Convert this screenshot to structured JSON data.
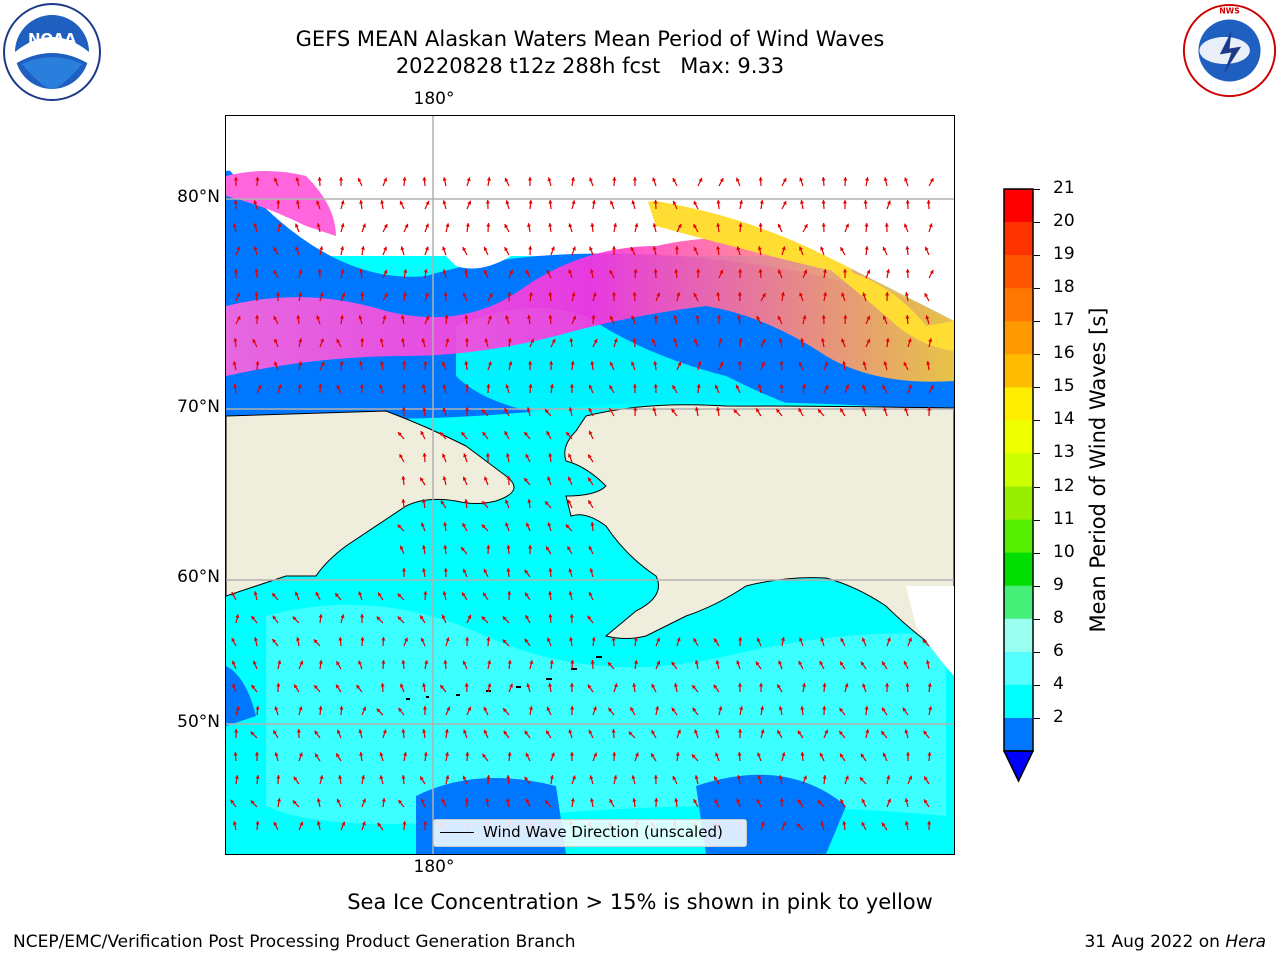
{
  "header": {
    "title_line1": "GEFS MEAN Alaskan Waters Mean Period of Wind Waves",
    "title_line2": "20220828 t12z 288h fcst   Max: 9.33"
  },
  "map": {
    "lat_labels": [
      "80°N",
      "70°N",
      "60°N",
      "50°N"
    ],
    "lon_label_top": "180°",
    "lon_label_bottom": "180°",
    "legend_text": "Wind Wave Direction (unscaled)",
    "arrow_color": "#e00000",
    "land_color": "#efeddc"
  },
  "colorbar": {
    "label": "Mean Period of Wind Waves [s]",
    "ticks": [
      "21",
      "20",
      "19",
      "18",
      "17",
      "16",
      "15",
      "14",
      "13",
      "12",
      "11",
      "10",
      "9",
      "8",
      "6",
      "4",
      "2"
    ],
    "colors": [
      "#ff0000",
      "#ff3300",
      "#ff5500",
      "#ff7700",
      "#ff9900",
      "#ffbb00",
      "#ffee00",
      "#eeff00",
      "#ccff00",
      "#99ee00",
      "#55ee00",
      "#00dd00",
      "#44ee77",
      "#99ffee",
      "#55ffff",
      "#00ffff",
      "#0077ff"
    ],
    "under_color": "#0000ff"
  },
  "notes": {
    "ice_note": "Sea Ice Concentration > 15% is shown in pink to yellow"
  },
  "footer": {
    "left": "NCEP/EMC/Verification Post Processing Product Generation Branch",
    "right_date": "31 Aug 2022 on ",
    "right_host": "Hera"
  },
  "logos": {
    "noaa_text": "NOAA",
    "nws_text": "NATIONAL WEATHER SERVICE"
  }
}
